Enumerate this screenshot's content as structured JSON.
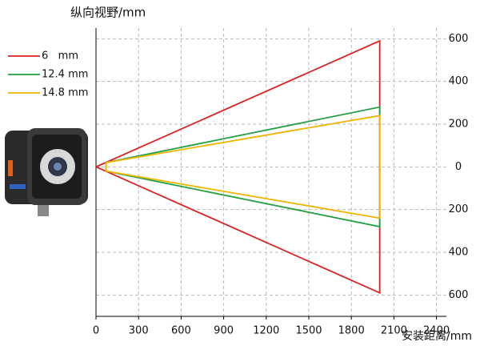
{
  "chart_data": {
    "type": "line",
    "y_axis_title": "纵向视野/mm",
    "x_axis_title": "安装距离/mm",
    "xlim": [
      0,
      2470
    ],
    "ylim": [
      -700,
      650
    ],
    "xticks": [
      0,
      300,
      600,
      900,
      1200,
      1500,
      1800,
      2100,
      2400
    ],
    "yticks": [
      600,
      400,
      200,
      0,
      {
        "value": -200,
        "label": "200"
      },
      {
        "value": -400,
        "label": "400"
      },
      {
        "value": -600,
        "label": "600"
      }
    ],
    "grid": true,
    "series": [
      {
        "name": "6   mm",
        "color": "#e02020",
        "x": [
          0,
          2000,
          2000,
          0
        ],
        "values": [
          0,
          590,
          -590,
          0
        ]
      },
      {
        "name": "12.4 mm",
        "color": "#20a040",
        "x": [
          70,
          2000,
          2000,
          70,
          70
        ],
        "values": [
          20,
          280,
          -280,
          -20,
          20
        ]
      },
      {
        "name": "14.8 mm",
        "color": "#f0b400",
        "x": [
          70,
          2000,
          2000,
          70,
          70
        ],
        "values": [
          20,
          240,
          -240,
          -20,
          20
        ]
      }
    ]
  }
}
